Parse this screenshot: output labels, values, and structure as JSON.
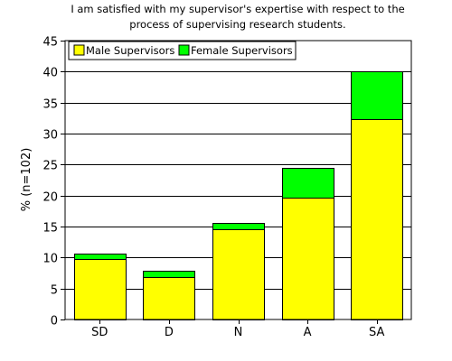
{
  "chart_data": {
    "type": "bar",
    "stacked": true,
    "title_lines": [
      "I am satisfied with my supervisor's expertise with respect to the",
      "process of supervising research students."
    ],
    "xlabel": "",
    "ylabel": "% (n=102)",
    "categories": [
      "SD",
      "D",
      "N",
      "A",
      "SA"
    ],
    "series": [
      {
        "name": "Male Supervisors",
        "color": "#ffff00",
        "values": [
          9.7,
          6.8,
          14.6,
          19.6,
          32.3
        ]
      },
      {
        "name": "Female Supervisors",
        "color": "#00ff00",
        "values": [
          1.0,
          1.0,
          1.0,
          4.9,
          7.8
        ]
      }
    ],
    "ylim": [
      0,
      45
    ],
    "yticks": [
      0,
      5,
      10,
      15,
      20,
      25,
      30,
      35,
      40,
      45
    ],
    "grid": true,
    "legend": "top-left"
  }
}
